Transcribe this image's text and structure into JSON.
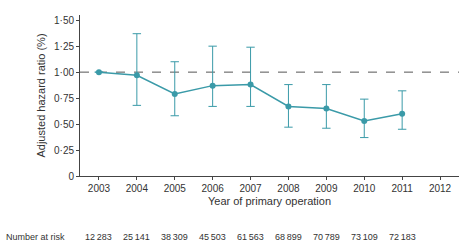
{
  "chart_data": {
    "type": "line",
    "x": [
      2003,
      2004,
      2005,
      2006,
      2007,
      2008,
      2009,
      2010,
      2011
    ],
    "values": [
      1.0,
      0.97,
      0.79,
      0.87,
      0.88,
      0.67,
      0.65,
      0.53,
      0.6
    ],
    "ci_low": [
      1.0,
      0.68,
      0.58,
      0.67,
      0.67,
      0.47,
      0.46,
      0.37,
      0.45
    ],
    "ci_high": [
      1.0,
      1.37,
      1.1,
      1.25,
      1.24,
      0.88,
      0.88,
      0.74,
      0.82
    ],
    "color": "#3a9aa8",
    "marker": "circle",
    "line_style": "solid",
    "reference_line": 1.0,
    "xlabel": "Year of primary operation",
    "ylabel": "Adjusted hazard ratio (%)",
    "xlim": [
      2002.5,
      2012.5
    ],
    "xticks": [
      2003,
      2004,
      2005,
      2006,
      2007,
      2008,
      2009,
      2010,
      2011,
      2012
    ],
    "ylim": [
      0,
      1.55
    ],
    "yticks": [
      0,
      {
        "value": 0.25,
        "label": "0·25"
      },
      {
        "value": 0.5,
        "label": "0·50"
      },
      {
        "value": 0.75,
        "label": "0·75"
      },
      {
        "value": 1.0,
        "label": "1·00"
      },
      {
        "value": 1.25,
        "label": "1·25"
      },
      {
        "value": 1.5,
        "label": "1·50"
      }
    ],
    "grid": false,
    "number_at_risk": {
      "label": "Number at risk",
      "x": [
        2003,
        2004,
        2005,
        2006,
        2007,
        2008,
        2009,
        2010,
        2011
      ],
      "values": [
        12283,
        25141,
        38309,
        45503,
        61563,
        68899,
        70789,
        73109,
        72183
      ],
      "value_labels": [
        "12 283",
        "25 141",
        "38 309",
        "45 503",
        "61 563",
        "68 899",
        "70 789",
        "73 109",
        "72 183"
      ]
    }
  }
}
